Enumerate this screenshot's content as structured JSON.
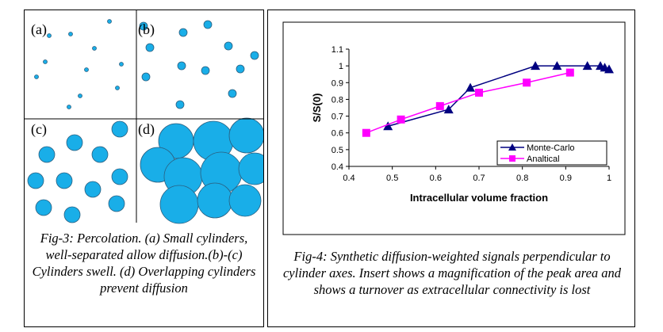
{
  "figure3": {
    "panel_labels": [
      "(a)",
      "(b)",
      "(c)",
      "(d)"
    ],
    "caption": "Fig-3: Percolation. (a) Small cylinders, well-separated allow diffusion.(b)-(c) Cylinders swell. (d) Overlapping cylinders prevent diffusion"
  },
  "chart_data": {
    "type": "line",
    "xlabel": "Intracellular volume fraction",
    "ylabel": "S/S(0)",
    "xlim": [
      0.4,
      1
    ],
    "xticks": [
      0.4,
      0.5,
      0.6,
      0.7,
      0.8,
      0.9,
      1
    ],
    "ylim": [
      0.4,
      1.1
    ],
    "yticks": [
      0.4,
      0.5,
      0.6,
      0.7,
      0.8,
      0.9,
      1,
      1.1
    ],
    "legend": "lower right",
    "series": [
      {
        "name": "Monte-Carlo",
        "color": "#000080",
        "marker": "triangle",
        "x": [
          0.49,
          0.63,
          0.68,
          0.83,
          0.88,
          0.95,
          0.98,
          0.99,
          1.0
        ],
        "values": [
          0.64,
          0.74,
          0.87,
          1.0,
          1.0,
          1.0,
          1.0,
          0.99,
          0.98
        ]
      },
      {
        "name": "Analtical",
        "color": "#ff00ff",
        "marker": "square",
        "x": [
          0.44,
          0.52,
          0.61,
          0.7,
          0.81,
          0.91
        ],
        "values": [
          0.6,
          0.68,
          0.76,
          0.84,
          0.9,
          0.96
        ]
      }
    ]
  },
  "figure4_caption": "Fig-4: Synthetic diffusion-weighted signals perpendicular to cylinder axes. Insert shows a magnification of the peak area and shows a turnover as extracellular connectivity is lost"
}
